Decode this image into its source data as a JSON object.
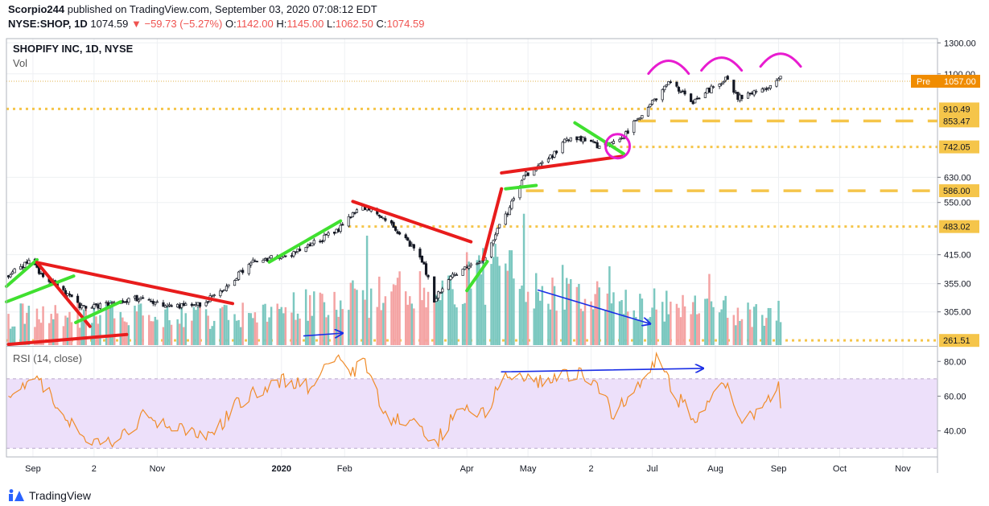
{
  "header": {
    "author": "Scorpio244",
    "published_text": "published on TradingView.com, September 03, 2020 07:08:12 EDT",
    "symbol": "NYSE:SHOP, 1D",
    "last": "1074.59",
    "change": "▼ −59.73 (−5.27%)",
    "o_label": "O:",
    "o_value": "1142.00",
    "h_label": "H:",
    "h_value": "1145.00",
    "l_label": "L:",
    "l_value": "1062.50",
    "c_label": "C:",
    "c_value": "1074.59"
  },
  "legend": {
    "title": "SHOPIFY INC, 1D, NYSE",
    "vol": "Vol",
    "rsi": "RSI (14, close)"
  },
  "footer": {
    "brand": "TradingView"
  },
  "colors": {
    "up": "#26a69a",
    "down": "#ef5350",
    "candle": "#131722",
    "red_line": "#e81c1c",
    "green_line": "#40e030",
    "blue_line": "#1a2ee6",
    "magenta": "#e81cd0",
    "level": "#f5c54a",
    "pre": "#f08c00",
    "rsi": "#f08c2a",
    "rsi_band": "#ede0fa"
  },
  "chart_data": [
    {
      "type": "candlestick",
      "title": "SHOPIFY INC, 1D, NYSE",
      "scale": "log",
      "ylim": [
        255,
        1330
      ],
      "xlim": [
        "2019-08-19",
        "2020-11-18"
      ],
      "x_ticks": [
        {
          "label": "Sep",
          "date": "2019-09-01"
        },
        {
          "label": "2",
          "date": "2019-10-01"
        },
        {
          "label": "Nov",
          "date": "2019-11-01"
        },
        {
          "label": "2020",
          "date": "2020-01-01"
        },
        {
          "label": "Feb",
          "date": "2020-02-01"
        },
        {
          "label": "Apr",
          "date": "2020-04-01"
        },
        {
          "label": "May",
          "date": "2020-05-01"
        },
        {
          "label": "2",
          "date": "2020-06-01"
        },
        {
          "label": "Jul",
          "date": "2020-07-01"
        },
        {
          "label": "Aug",
          "date": "2020-08-01"
        },
        {
          "label": "Sep",
          "date": "2020-09-01"
        },
        {
          "label": "Oct",
          "date": "2020-10-01"
        },
        {
          "label": "Nov",
          "date": "2020-11-01"
        }
      ],
      "y_ticks": [
        "1300.00",
        "1100.00",
        "630.00",
        "550.00",
        "415.00",
        "355.00",
        "305.00"
      ],
      "price_labels": [
        {
          "value": "1057.00",
          "tag": "Pre",
          "style": "pre"
        },
        {
          "value": "910.49",
          "style": "level"
        },
        {
          "value": "853.47",
          "style": "level"
        },
        {
          "value": "742.05",
          "style": "level"
        },
        {
          "value": "586.00",
          "style": "level"
        },
        {
          "value": "483.02",
          "style": "level"
        },
        {
          "value": "261.51",
          "style": "level"
        }
      ],
      "levels": [
        {
          "value": 1057.0,
          "style": "thin"
        },
        {
          "value": 910.49,
          "style": "dotted"
        },
        {
          "value": 853.47,
          "style": "dashed",
          "from": "2020-06-24"
        },
        {
          "value": 742.05,
          "style": "dotted",
          "from": "2020-06-12"
        },
        {
          "value": 586.0,
          "style": "dashed",
          "from": "2020-04-30"
        },
        {
          "value": 483.02,
          "style": "dotted",
          "from": "2020-02-03"
        },
        {
          "value": 261.51,
          "style": "dotted",
          "from": "2019-08-19"
        }
      ],
      "anchors": [
        {
          "date": "2019-08-20",
          "close": 372
        },
        {
          "date": "2019-08-30",
          "close": 398
        },
        {
          "date": "2019-09-10",
          "close": 360
        },
        {
          "date": "2019-09-25",
          "close": 312
        },
        {
          "date": "2019-10-08",
          "close": 318
        },
        {
          "date": "2019-10-25",
          "close": 330
        },
        {
          "date": "2019-11-05",
          "close": 312
        },
        {
          "date": "2019-11-22",
          "close": 318
        },
        {
          "date": "2019-12-03",
          "close": 340
        },
        {
          "date": "2019-12-17",
          "close": 398
        },
        {
          "date": "2020-01-08",
          "close": 420
        },
        {
          "date": "2020-01-28",
          "close": 470
        },
        {
          "date": "2020-02-10",
          "close": 540
        },
        {
          "date": "2020-02-21",
          "close": 500
        },
        {
          "date": "2020-03-09",
          "close": 415
        },
        {
          "date": "2020-03-16",
          "close": 325
        },
        {
          "date": "2020-03-25",
          "close": 370
        },
        {
          "date": "2020-04-09",
          "close": 405
        },
        {
          "date": "2020-04-21",
          "close": 520
        },
        {
          "date": "2020-04-30",
          "close": 640
        },
        {
          "date": "2020-05-12",
          "close": 700
        },
        {
          "date": "2020-05-22",
          "close": 790
        },
        {
          "date": "2020-06-05",
          "close": 745
        },
        {
          "date": "2020-06-16",
          "close": 775
        },
        {
          "date": "2020-07-01",
          "close": 940
        },
        {
          "date": "2020-07-09",
          "close": 1060
        },
        {
          "date": "2020-07-21",
          "close": 950
        },
        {
          "date": "2020-08-06",
          "close": 1070
        },
        {
          "date": "2020-08-12",
          "close": 970
        },
        {
          "date": "2020-08-25",
          "close": 1010
        },
        {
          "date": "2020-09-02",
          "close": 1074.59
        }
      ],
      "volume": {
        "ylim": [
          0,
          28000000
        ],
        "anchors": [
          {
            "date": "2019-08-20",
            "value": 2600000
          },
          {
            "date": "2019-10-01",
            "value": 2900000
          },
          {
            "date": "2019-12-01",
            "value": 2600000
          },
          {
            "date": "2020-02-10",
            "value": 4200000
          },
          {
            "date": "2020-03-16",
            "value": 5200000
          },
          {
            "date": "2020-04-20",
            "value": 6800000
          },
          {
            "date": "2020-05-20",
            "value": 5000000
          },
          {
            "date": "2020-07-01",
            "value": 3600000
          },
          {
            "date": "2020-09-02",
            "value": 2800000
          }
        ],
        "spikes": [
          {
            "date": "2020-02-12",
            "value": 10000000
          },
          {
            "date": "2020-04-29",
            "value": 12000000
          },
          {
            "date": "2020-06-10",
            "value": 7200000
          },
          {
            "date": "2020-07-29",
            "value": 6500000
          }
        ]
      },
      "annotations": [
        {
          "type": "line",
          "color": "red",
          "points": [
            {
              "date": "2019-08-20",
              "value": 256
            },
            {
              "date": "2019-10-17",
              "value": 270
            }
          ]
        },
        {
          "type": "line",
          "color": "green",
          "points": [
            {
              "date": "2019-08-19",
              "value": 350
            },
            {
              "date": "2019-09-03",
              "value": 404
            }
          ]
        },
        {
          "type": "line",
          "color": "green",
          "points": [
            {
              "date": "2019-08-19",
              "value": 322
            },
            {
              "date": "2019-09-21",
              "value": 370
            }
          ]
        },
        {
          "type": "line",
          "color": "red",
          "points": [
            {
              "date": "2019-09-03",
              "value": 398
            },
            {
              "date": "2019-09-29",
              "value": 282
            }
          ]
        },
        {
          "type": "line",
          "color": "red",
          "points": [
            {
              "date": "2019-09-03",
              "value": 398
            },
            {
              "date": "2019-12-08",
              "value": 319
            }
          ]
        },
        {
          "type": "line",
          "color": "green",
          "points": [
            {
              "date": "2019-09-22",
              "value": 288
            },
            {
              "date": "2019-10-14",
              "value": 322
            }
          ]
        },
        {
          "type": "line",
          "color": "green",
          "points": [
            {
              "date": "2019-12-26",
              "value": 399
            },
            {
              "date": "2020-01-30",
              "value": 498
            }
          ]
        },
        {
          "type": "line",
          "color": "red",
          "points": [
            {
              "date": "2020-02-05",
              "value": 553
            },
            {
              "date": "2020-04-03",
              "value": 445
            }
          ]
        },
        {
          "type": "line",
          "color": "green",
          "points": [
            {
              "date": "2020-04-01",
              "value": 342
            },
            {
              "date": "2020-04-11",
              "value": 400
            }
          ]
        },
        {
          "type": "line",
          "color": "red",
          "points": [
            {
              "date": "2020-04-09",
              "value": 405
            },
            {
              "date": "2020-04-18",
              "value": 592
            }
          ]
        },
        {
          "type": "line",
          "color": "red",
          "points": [
            {
              "date": "2020-04-18",
              "value": 645
            },
            {
              "date": "2020-06-16",
              "value": 705
            }
          ]
        },
        {
          "type": "line",
          "color": "green",
          "points": [
            {
              "date": "2020-04-20",
              "value": 592
            },
            {
              "date": "2020-05-05",
              "value": 603
            }
          ]
        },
        {
          "type": "line",
          "color": "green",
          "points": [
            {
              "date": "2020-05-24",
              "value": 845
            },
            {
              "date": "2020-06-17",
              "value": 715
            }
          ]
        },
        {
          "type": "arc",
          "color": "magenta",
          "date": "2020-06-14",
          "value": 745
        },
        {
          "type": "arc",
          "color": "magenta",
          "date": "2020-07-09",
          "value": 1150
        },
        {
          "type": "arc",
          "color": "magenta",
          "date": "2020-08-04",
          "value": 1170
        },
        {
          "type": "arc",
          "color": "magenta",
          "date": "2020-09-02",
          "value": 1195
        },
        {
          "type": "arrow",
          "color": "blue",
          "points": [
            {
              "date": "2020-01-12",
              "value": 268
            },
            {
              "date": "2020-01-31",
              "value": 272
            }
          ]
        },
        {
          "type": "arrow",
          "color": "blue",
          "points": [
            {
              "date": "2020-05-06",
              "value": 343
            },
            {
              "date": "2020-06-30",
              "value": 286
            }
          ]
        }
      ]
    },
    {
      "type": "line",
      "title": "RSI (14, close)",
      "ylim": [
        25,
        88
      ],
      "y_ticks": [
        "80.00",
        "60.00",
        "40.00"
      ],
      "band": [
        30,
        70
      ],
      "anchors": [
        {
          "date": "2019-08-20",
          "value": 60
        },
        {
          "date": "2019-09-03",
          "value": 70
        },
        {
          "date": "2019-09-25",
          "value": 36
        },
        {
          "date": "2019-10-10",
          "value": 33
        },
        {
          "date": "2019-10-25",
          "value": 48
        },
        {
          "date": "2019-11-08",
          "value": 42
        },
        {
          "date": "2019-11-29",
          "value": 38
        },
        {
          "date": "2019-12-10",
          "value": 56
        },
        {
          "date": "2019-12-30",
          "value": 69
        },
        {
          "date": "2020-01-14",
          "value": 66
        },
        {
          "date": "2020-01-28",
          "value": 84
        },
        {
          "date": "2020-02-05",
          "value": 73
        },
        {
          "date": "2020-02-10",
          "value": 80
        },
        {
          "date": "2020-02-21",
          "value": 48
        },
        {
          "date": "2020-03-09",
          "value": 44
        },
        {
          "date": "2020-03-16",
          "value": 32
        },
        {
          "date": "2020-03-26",
          "value": 50
        },
        {
          "date": "2020-04-10",
          "value": 52
        },
        {
          "date": "2020-04-20",
          "value": 70
        },
        {
          "date": "2020-05-05",
          "value": 68
        },
        {
          "date": "2020-05-26",
          "value": 74
        },
        {
          "date": "2020-06-05",
          "value": 62
        },
        {
          "date": "2020-06-12",
          "value": 50
        },
        {
          "date": "2020-06-24",
          "value": 68
        },
        {
          "date": "2020-07-03",
          "value": 82
        },
        {
          "date": "2020-07-14",
          "value": 58
        },
        {
          "date": "2020-07-22",
          "value": 48
        },
        {
          "date": "2020-08-06",
          "value": 66
        },
        {
          "date": "2020-08-14",
          "value": 44
        },
        {
          "date": "2020-08-24",
          "value": 52
        },
        {
          "date": "2020-09-01",
          "value": 64
        },
        {
          "date": "2020-09-02",
          "value": 56
        }
      ],
      "annotations": [
        {
          "type": "arrow",
          "color": "blue",
          "points": [
            {
              "date": "2020-04-18",
              "value": 74
            },
            {
              "date": "2020-07-26",
              "value": 76
            }
          ]
        }
      ]
    }
  ]
}
